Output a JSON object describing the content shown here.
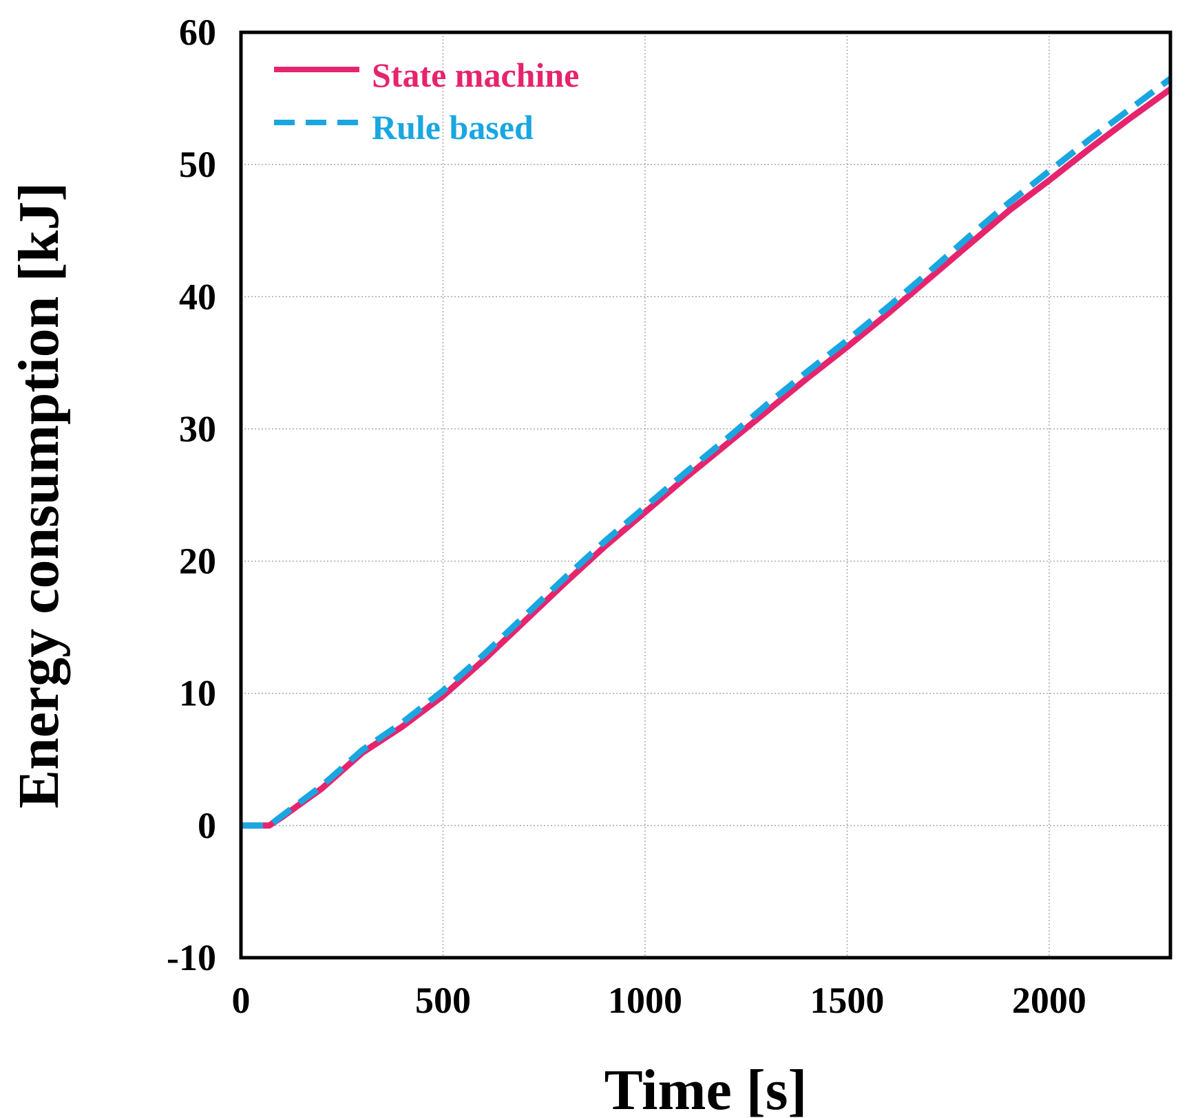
{
  "chart_data": {
    "type": "line",
    "title": "",
    "xlabel": "Time [s]",
    "ylabel": "Energy consumption [kJ]",
    "xlim": [
      0,
      2300
    ],
    "ylim": [
      -10,
      60
    ],
    "xticks": [
      0,
      500,
      1000,
      1500,
      2000
    ],
    "yticks": [
      -10,
      0,
      10,
      20,
      30,
      40,
      50,
      60
    ],
    "grid": true,
    "legend_position": "top-left",
    "series": [
      {
        "name": "State machine",
        "color": "#e6246e",
        "style": "solid",
        "x": [
          0,
          70,
          100,
          200,
          300,
          400,
          500,
          600,
          700,
          800,
          900,
          1000,
          1100,
          1200,
          1300,
          1400,
          1500,
          1600,
          1700,
          1800,
          1900,
          2000,
          2100,
          2200,
          2300
        ],
        "y": [
          0,
          0,
          0.6,
          2.8,
          5.5,
          7.5,
          9.8,
          12.5,
          15.4,
          18.3,
          21.1,
          23.7,
          26.3,
          28.8,
          31.3,
          33.8,
          36.2,
          38.7,
          41.3,
          43.9,
          46.5,
          48.8,
          51.2,
          53.5,
          55.7
        ]
      },
      {
        "name": "Rule based",
        "color": "#1aa6e0",
        "style": "dashed",
        "x": [
          0,
          70,
          100,
          200,
          300,
          400,
          500,
          600,
          700,
          800,
          900,
          1000,
          1100,
          1200,
          1300,
          1400,
          1500,
          1600,
          1700,
          1800,
          1900,
          2000,
          2100,
          2200,
          2300
        ],
        "y": [
          0,
          0,
          0.7,
          3.0,
          5.7,
          7.8,
          10.2,
          12.9,
          15.8,
          18.7,
          21.5,
          24.1,
          26.7,
          29.2,
          31.8,
          34.3,
          36.7,
          39.2,
          41.8,
          44.5,
          47.1,
          49.5,
          51.9,
          54.2,
          56.5
        ]
      }
    ]
  }
}
